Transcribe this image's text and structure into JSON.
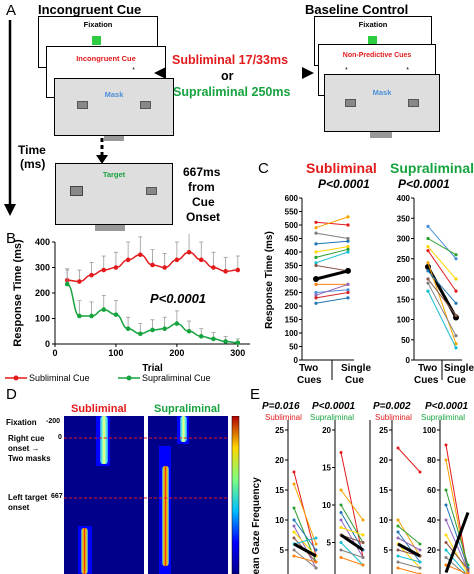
{
  "colors": {
    "red": "#e31a1c",
    "green": "#17a33f",
    "blue": "#4a90d9",
    "fixation": "#2ecc40"
  },
  "panelA": {
    "letter": "A",
    "incongruent_title": "Incongruent Cue",
    "baseline_title": "Baseline Control",
    "screens": {
      "fixation": "Fixation",
      "incongruent_cue": "Incongruent Cue",
      "mask": "Mask",
      "non_predictive": "Non-Predictive Cues",
      "mask2": "Mask",
      "target": "Target",
      "fixation2": "Fixation"
    },
    "subliminal_text": "Subliminal 17/33ms",
    "or_text": "or",
    "supraliminal_text": "Supraliminal 250ms",
    "time_label_1": "Time",
    "time_label_2": "(ms)",
    "timing_1": "667ms",
    "timing_2": "from",
    "timing_3": "Cue",
    "timing_4": "Onset"
  },
  "panelB": {
    "letter": "B",
    "pvalue": "P<0.0001",
    "legend": {
      "subliminal": "Subliminal Cue",
      "supraliminal": "Supraliminal Cue"
    }
  },
  "panelC": {
    "letter": "C",
    "subliminal": "Subliminal",
    "supraliminal": "Supraliminal",
    "p1": "P<0.0001",
    "p2": "P<0.0001",
    "xlabel_left_1": "Two",
    "xlabel_left_2": "Cues",
    "xlabel_right_1": "Single",
    "xlabel_right_2": "Cue",
    "xlabel2_left_1": "Two",
    "xlabel2_left_2": "Cues",
    "xlabel2_right_1": "Single",
    "xlabel2_right_2": "Cue"
  },
  "panelD": {
    "letter": "D",
    "subliminal": "Subliminal",
    "supraliminal": "Supraliminal",
    "fixation": "Fixation",
    "right_cue_1": "Right cue",
    "right_cue_2": "onset →",
    "right_cue_3": "Two masks",
    "left_target_1": "Left target",
    "left_target_2": "onset",
    "tick_m200": "-200",
    "tick_0": "0",
    "tick_667": "667"
  },
  "panelE": {
    "letter": "E",
    "p1": "P=0.016",
    "p2": "P<0.0001",
    "p3": "P=0.002",
    "p4": "P<0.0001",
    "sub1": "Subliminal",
    "sup1": "Supraliminal",
    "sub2": "Subliminal",
    "sup2": "Supraliminal",
    "ylabel": "Mean Gaze Frequency",
    "ticks_a": [
      "25",
      "20",
      "15",
      "10",
      "5"
    ],
    "ticks_b": [
      "20",
      "15",
      "10",
      "5"
    ],
    "ticks_c": [
      "25",
      "20",
      "15",
      "10",
      "5"
    ],
    "ticks_d": [
      "100",
      "80",
      "60",
      "40",
      "20"
    ]
  },
  "chart_data": [
    {
      "type": "line",
      "panel": "B",
      "xlabel": "Trial",
      "ylabel": "Response Time (ms)",
      "xlim": [
        0,
        320
      ],
      "ylim": [
        0,
        400
      ],
      "xticks": [
        0,
        100,
        200,
        300
      ],
      "yticks": [
        0,
        100,
        200,
        300,
        400
      ],
      "series": [
        {
          "name": "Subliminal Cue",
          "color": "#e31a1c",
          "x": [
            20,
            40,
            60,
            80,
            100,
            120,
            140,
            160,
            180,
            200,
            220,
            240,
            260,
            280,
            300
          ],
          "y": [
            250,
            245,
            270,
            290,
            300,
            330,
            350,
            310,
            300,
            330,
            360,
            330,
            300,
            285,
            290
          ],
          "err": [
            40,
            45,
            50,
            55,
            60,
            70,
            70,
            60,
            55,
            70,
            75,
            70,
            60,
            55,
            55
          ]
        },
        {
          "name": "Supraliminal Cue",
          "color": "#17a33f",
          "x": [
            20,
            40,
            60,
            80,
            100,
            120,
            140,
            160,
            180,
            200,
            220,
            240,
            260,
            280,
            300
          ],
          "y": [
            235,
            110,
            110,
            135,
            115,
            60,
            40,
            55,
            60,
            80,
            50,
            30,
            20,
            10,
            5
          ],
          "err": [
            60,
            60,
            55,
            55,
            55,
            45,
            40,
            40,
            45,
            50,
            40,
            30,
            25,
            20,
            15
          ]
        }
      ]
    },
    {
      "type": "line",
      "panel": "C",
      "ylabel": "Response Time (ms)",
      "ylim": [
        0,
        600
      ],
      "yticks": [
        0,
        50,
        100,
        150,
        200,
        250,
        300,
        350,
        400,
        450,
        500,
        550,
        600
      ],
      "categories": [
        "Two Cues",
        "Single Cue"
      ],
      "series": [
        {
          "color": "#e31a1c",
          "values": [
            510,
            500
          ]
        },
        {
          "color": "#f4a300",
          "values": [
            490,
            530
          ]
        },
        {
          "color": "#7f7f7f",
          "values": [
            470,
            450
          ]
        },
        {
          "color": "#1f77b4",
          "values": [
            430,
            440
          ]
        },
        {
          "color": "#ffd700",
          "values": [
            400,
            420
          ]
        },
        {
          "color": "#2ca02c",
          "values": [
            380,
            410
          ]
        },
        {
          "color": "#17becf",
          "values": [
            360,
            400
          ]
        },
        {
          "color": "#8c564b",
          "values": [
            350,
            330
          ]
        },
        {
          "color": "#000000",
          "values": [
            300,
            330
          ]
        },
        {
          "color": "#ff7f0e",
          "values": [
            280,
            280
          ]
        },
        {
          "color": "#4a90d9",
          "values": [
            250,
            260
          ]
        },
        {
          "color": "#9467bd",
          "values": [
            240,
            280
          ]
        },
        {
          "color": "#d62728",
          "values": [
            230,
            250
          ]
        },
        {
          "color": "#1f77b4",
          "values": [
            210,
            230
          ]
        }
      ]
    },
    {
      "type": "line",
      "panel": "C",
      "ylim": [
        0,
        400
      ],
      "yticks": [
        0,
        50,
        100,
        150,
        200,
        250,
        300,
        350,
        400
      ],
      "categories": [
        "Two Cues",
        "Single Cue"
      ],
      "series": [
        {
          "color": "#4a90d9",
          "values": [
            330,
            250
          ]
        },
        {
          "color": "#2ca02c",
          "values": [
            300,
            260
          ]
        },
        {
          "color": "#ffd700",
          "values": [
            280,
            200
          ]
        },
        {
          "color": "#e31a1c",
          "values": [
            270,
            170
          ]
        },
        {
          "color": "#000000",
          "values": [
            230,
            105
          ]
        },
        {
          "color": "#f4a300",
          "values": [
            240,
            40
          ]
        },
        {
          "color": "#1f77b4",
          "values": [
            220,
            140
          ]
        },
        {
          "color": "#8c564b",
          "values": [
            200,
            110
          ]
        },
        {
          "color": "#7f7f7f",
          "values": [
            190,
            60
          ]
        },
        {
          "color": "#17becf",
          "values": [
            170,
            30
          ]
        }
      ]
    }
  ]
}
